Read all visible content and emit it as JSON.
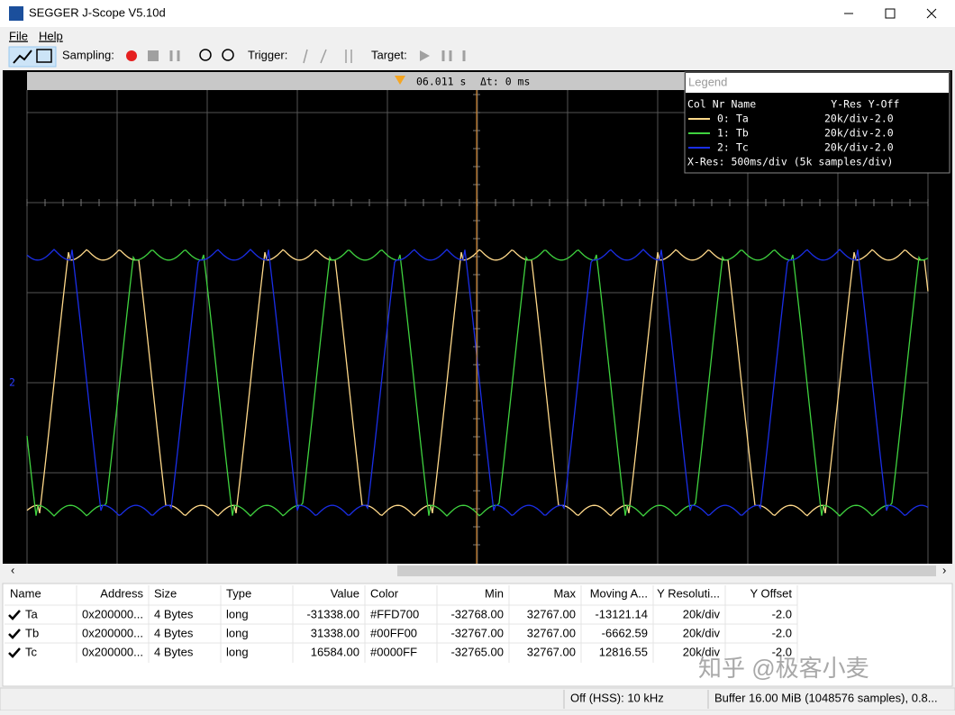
{
  "window": {
    "title": "SEGGER J-Scope V5.10d"
  },
  "menu": [
    "File",
    "Help"
  ],
  "toolbar": {
    "sampling": "Sampling:",
    "trigger": "Trigger:",
    "target": "Target:"
  },
  "scope": {
    "time": "06.011 s",
    "delta": "Δt: 0 ms",
    "marker": "2"
  },
  "legend": {
    "title": "Legend",
    "header": "Col Nr Name            Y-Res Y-Off",
    "rows": [
      {
        "nr": "0:",
        "name": "Ta",
        "yres": "20k/div",
        "yoff": "-2.0",
        "color": "#ffd98a"
      },
      {
        "nr": "1:",
        "name": "Tb",
        "yres": "20k/div",
        "yoff": "-2.0",
        "color": "#3fd23f"
      },
      {
        "nr": "2:",
        "name": "Tc",
        "yres": "20k/div",
        "yoff": "-2.0",
        "color": "#1a2ee6"
      }
    ],
    "xres": "X-Res: 500ms/div (5k samples/div)"
  },
  "table": {
    "columns": [
      "Name",
      "Address",
      "Size",
      "Type",
      "Value",
      "Color",
      "Min",
      "Max",
      "Moving A...",
      "Y Resoluti...",
      "Y Offset"
    ],
    "rows": [
      [
        "Ta",
        "0x200000...",
        "4 Bytes",
        "long",
        "-31338.00",
        "#FFD700",
        "-32768.00",
        "32767.00",
        "-13121.14",
        "20k/div",
        "-2.0"
      ],
      [
        "Tb",
        "0x200000...",
        "4 Bytes",
        "long",
        "31338.00",
        "#00FF00",
        "-32767.00",
        "32767.00",
        "-6662.59",
        "20k/div",
        "-2.0"
      ],
      [
        "Tc",
        "0x200000...",
        "4 Bytes",
        "long",
        "16584.00",
        "#0000FF",
        "-32765.00",
        "32767.00",
        "12816.55",
        "20k/div",
        "-2.0"
      ]
    ]
  },
  "status": {
    "left": "Off (HSS): 10 kHz",
    "right": "Buffer 16.00 MiB (1048576 samples), 0.8..."
  },
  "watermark": "知乎 @极客小麦"
}
